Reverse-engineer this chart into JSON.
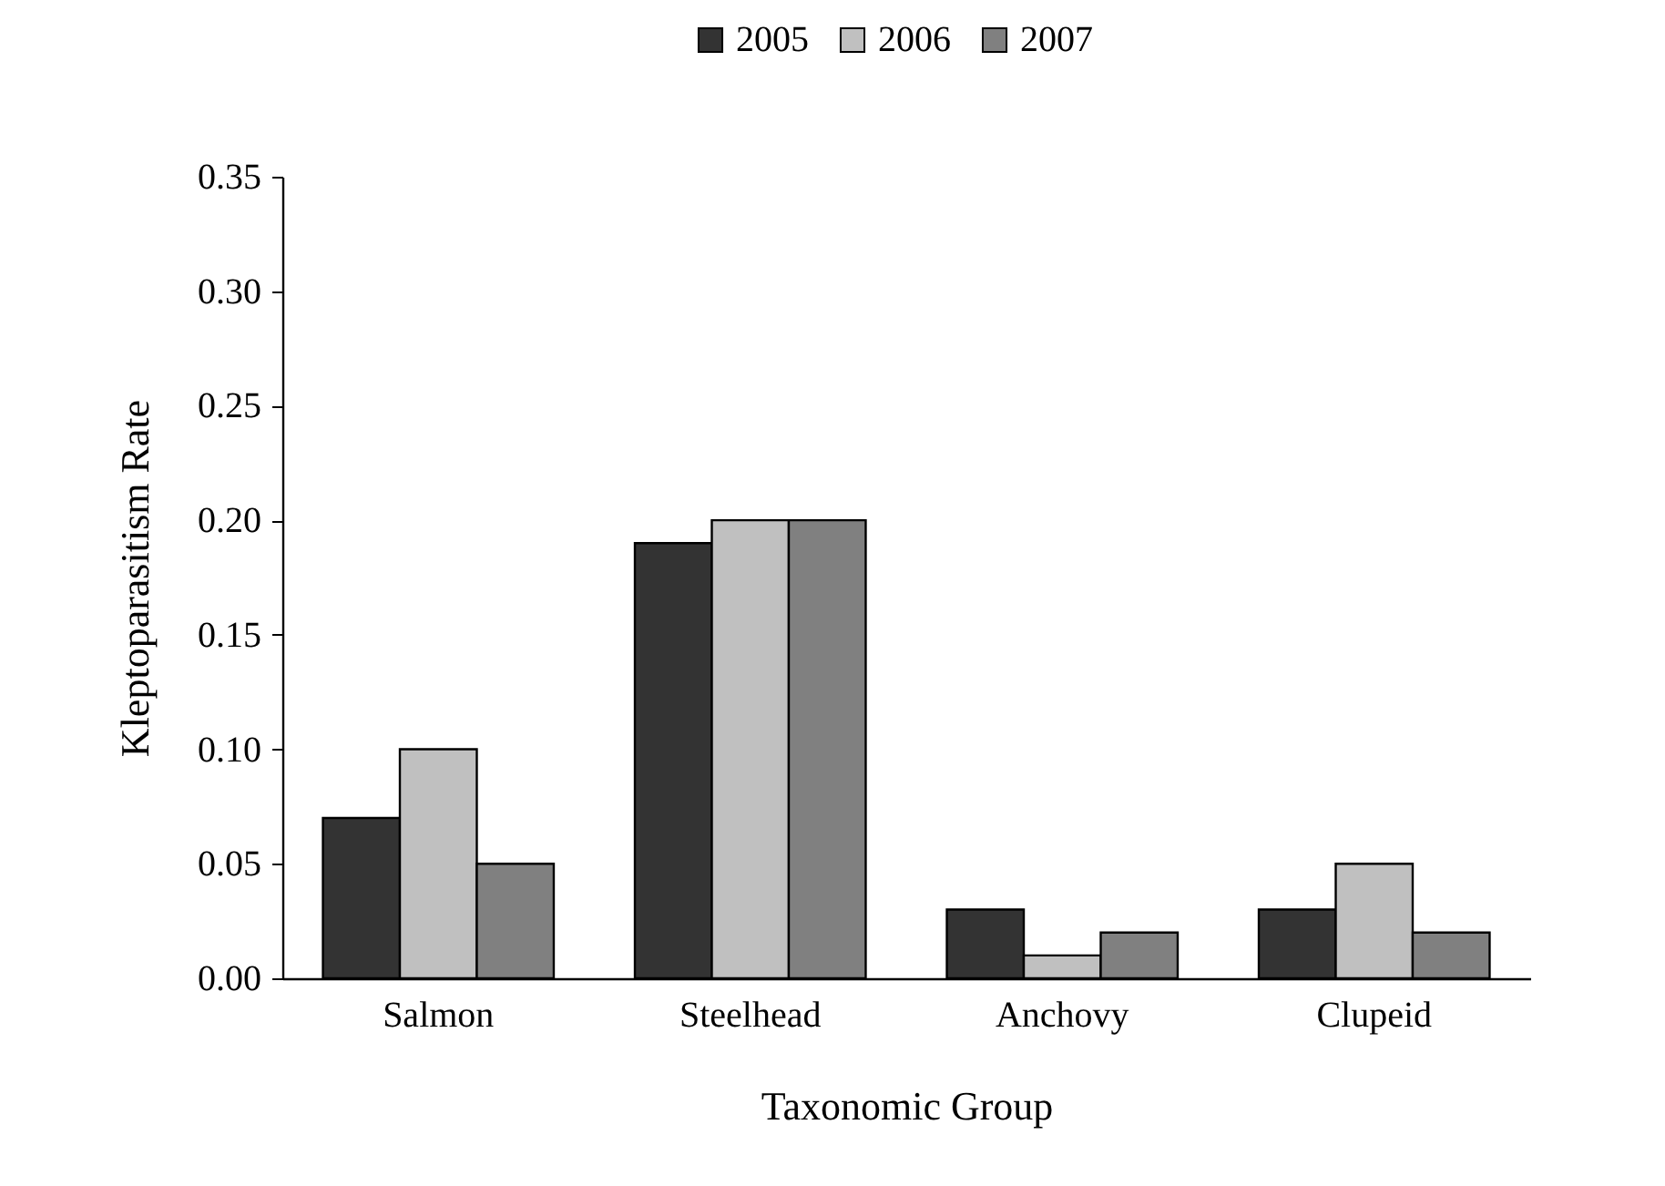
{
  "chart_data": {
    "type": "bar",
    "xlabel": "Taxonomic Group",
    "ylabel": "Kleptoparasitism Rate",
    "categories": [
      "Salmon",
      "Steelhead",
      "Anchovy",
      "Clupeid"
    ],
    "series": [
      {
        "name": "2005",
        "color": "#333333",
        "values": [
          0.07,
          0.19,
          0.03,
          0.03
        ]
      },
      {
        "name": "2006",
        "color": "#c0c0c0",
        "values": [
          0.1,
          0.2,
          0.01,
          0.05
        ]
      },
      {
        "name": "2007",
        "color": "#808080",
        "values": [
          0.05,
          0.2,
          0.02,
          0.02
        ]
      }
    ],
    "ylim": [
      0,
      0.35
    ],
    "yticks": [
      {
        "value": 0,
        "label": "0.00"
      },
      0.05,
      {
        "value": 0.1,
        "label": "0.10"
      },
      0.15,
      {
        "value": 0.2,
        "label": "0.20"
      },
      0.25,
      {
        "value": 0.3,
        "label": "0.30"
      },
      0.35
    ],
    "grid": false,
    "legend": "top"
  }
}
